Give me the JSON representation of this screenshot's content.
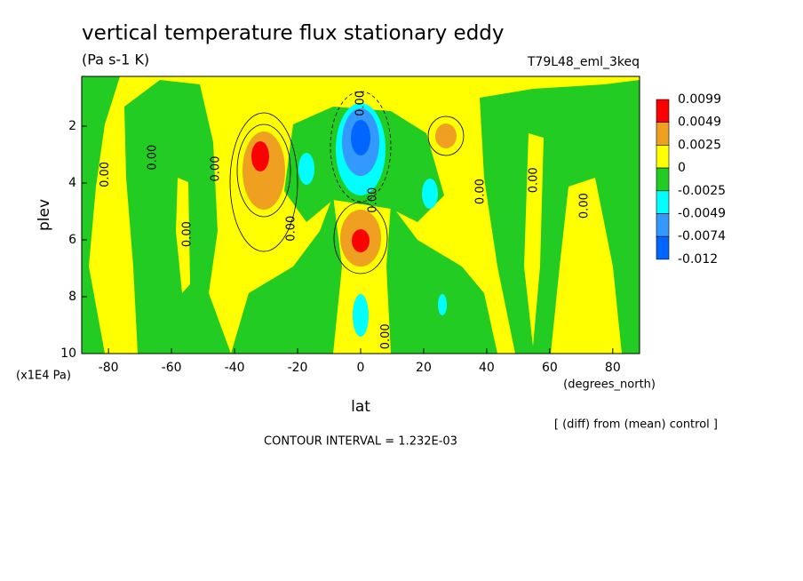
{
  "chart_data": {
    "type": "contour",
    "title": "vertical temperature flux stationary eddy",
    "subtitle": "(Pa s-1 K)",
    "dataset": "T79L48_eml_3keq",
    "x_label": "lat",
    "x_units": "(degrees_north)",
    "y_label": "plev",
    "y_units": "(x1E4 Pa)",
    "note": "[ (diff) from (mean) control ]",
    "contour_interval": "CONTOUR INTERVAL = 1.232E-03",
    "xlim": [
      -88.5,
      88.5
    ],
    "xticks": [
      -80,
      -60,
      -40,
      -20,
      0,
      20,
      40,
      60,
      80
    ],
    "ylim": [
      10,
      0.25
    ],
    "yticks": [
      2,
      4,
      6,
      8,
      10
    ],
    "y_inverted": true,
    "levels": [
      0.0099,
      0.0049,
      0.0025,
      0,
      -0.0025,
      -0.0049,
      -0.0074,
      -0.012
    ],
    "colors": [
      "#ff0000",
      "#f0a020",
      "#ffff00",
      "#22cc22",
      "#00ffff",
      "#3399ff",
      "#0066ff"
    ],
    "contour_labels": [
      {
        "text": "0.00",
        "lat": -81,
        "plev": 3.7
      },
      {
        "text": "0.00",
        "lat": -66,
        "plev": 3.1
      },
      {
        "text": "0.00",
        "lat": -46,
        "plev": 3.5
      },
      {
        "text": "0.00",
        "lat": -55,
        "plev": 5.8
      },
      {
        "text": "0.00",
        "lat": -22,
        "plev": 5.6
      },
      {
        "text": "0.00",
        "lat": 4,
        "plev": 4.6
      },
      {
        "text": "0.00",
        "lat": 0,
        "plev": 1.2
      },
      {
        "text": "0.00",
        "lat": 38,
        "plev": 4.3
      },
      {
        "text": "0.00",
        "lat": 55,
        "plev": 3.9
      },
      {
        "text": "0.00",
        "lat": 71,
        "plev": 4.8
      },
      {
        "text": "0.00",
        "lat": 8,
        "plev": 9.4
      }
    ]
  }
}
